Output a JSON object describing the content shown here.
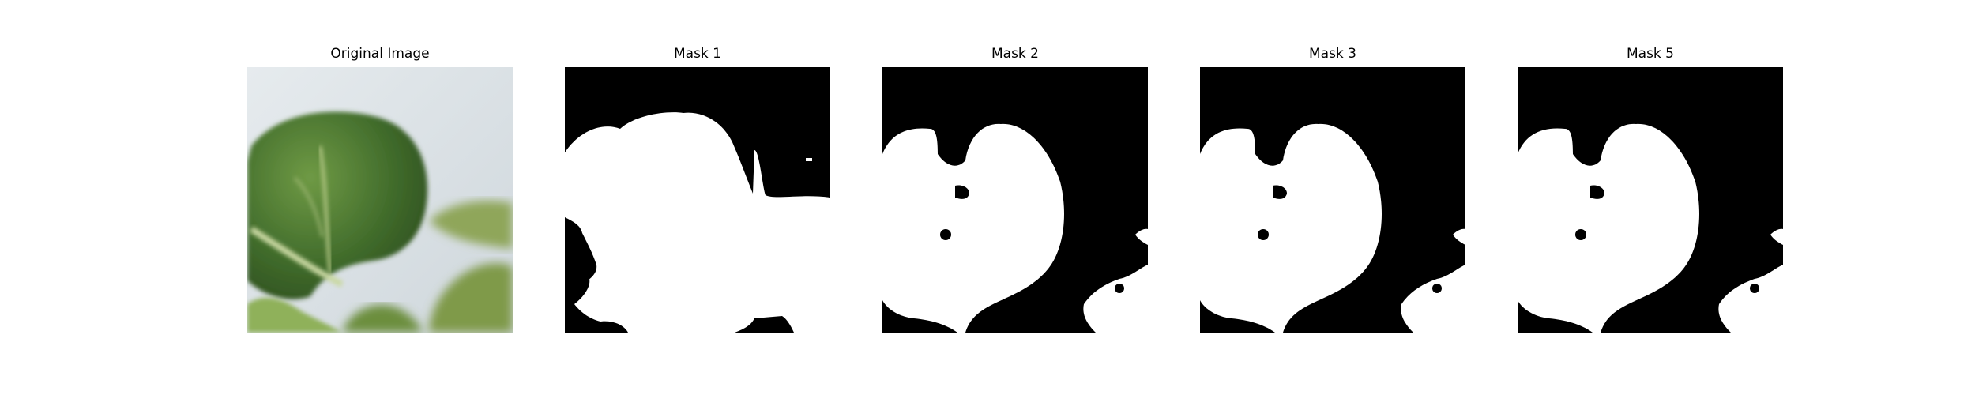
{
  "figure": {
    "panels": [
      {
        "title": "Original Image"
      },
      {
        "title": "Mask 1"
      },
      {
        "title": "Mask 2"
      },
      {
        "title": "Mask 3"
      },
      {
        "title": "Mask 5"
      }
    ]
  },
  "colors": {
    "mask_fill": "#ffffff",
    "mask_background": "#000000",
    "photo_background": "#dfe4e8",
    "leaf_dark": "#3b5e25",
    "leaf_mid": "#5e8a3a",
    "leaf_light": "#94b46a"
  }
}
